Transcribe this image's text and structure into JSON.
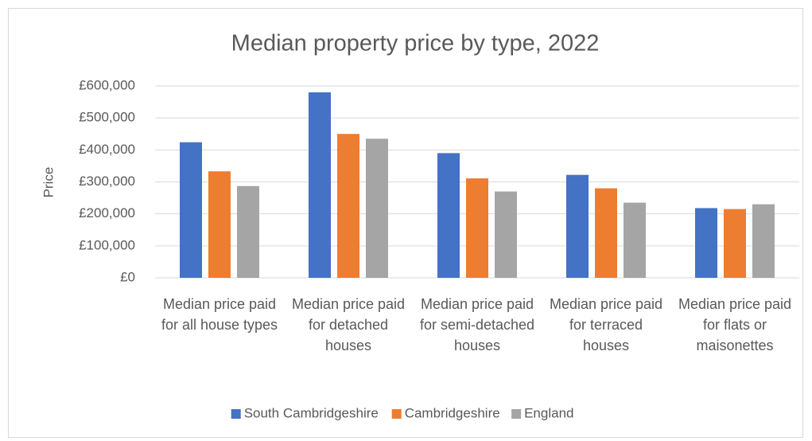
{
  "chart_data": {
    "type": "bar",
    "title": "Median property price by type, 2022",
    "ylabel": "Price",
    "categories": [
      "Median price paid for all house types",
      "Median price paid for detached houses",
      "Median price paid for semi-detached houses",
      "Median price paid for terraced houses",
      "Median price paid for flats or maisonettes"
    ],
    "series": [
      {
        "name": "South Cambridgeshire",
        "color": "#4472c4",
        "values": [
          424000,
          580000,
          390000,
          322000,
          218000
        ]
      },
      {
        "name": "Cambridgeshire",
        "color": "#ed7d31",
        "values": [
          333000,
          450000,
          311000,
          280000,
          215000
        ]
      },
      {
        "name": "England",
        "color": "#a5a5a5",
        "values": [
          287000,
          435000,
          270000,
          235000,
          230000
        ]
      }
    ],
    "ylim": [
      0,
      600000
    ],
    "yticks": [
      {
        "value": 0,
        "label": "£0"
      },
      {
        "value": 100000,
        "label": "£100,000"
      },
      {
        "value": 200000,
        "label": "£200,000"
      },
      {
        "value": 300000,
        "label": "£300,000"
      },
      {
        "value": 400000,
        "label": "£400,000"
      },
      {
        "value": 500000,
        "label": "£500,000"
      },
      {
        "value": 600000,
        "label": "£600,000"
      }
    ],
    "grid": true,
    "legend": "bottom"
  }
}
